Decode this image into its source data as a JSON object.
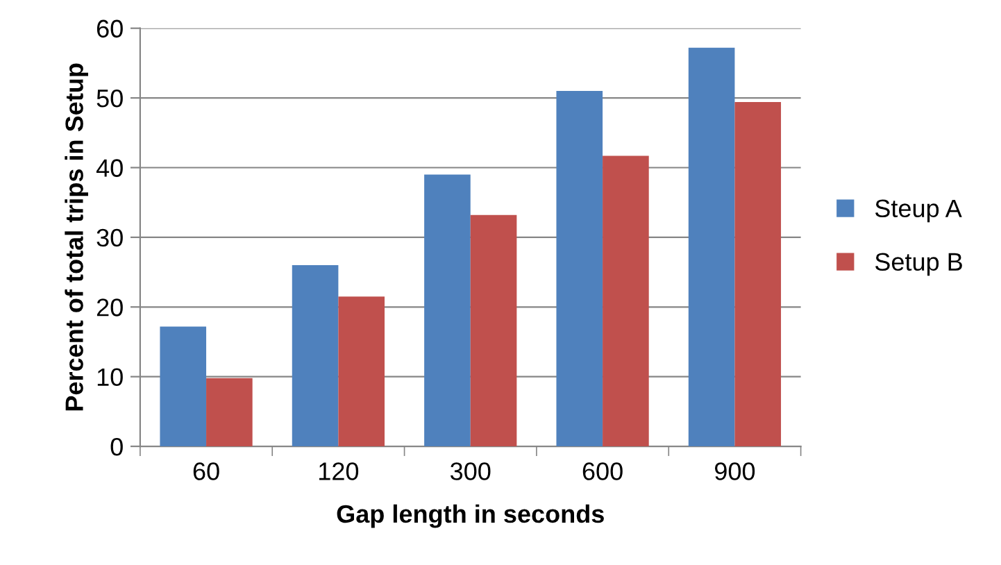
{
  "chart_data": {
    "type": "bar",
    "xlabel": "Gap length in seconds",
    "ylabel": "Percent of total trips in Setup",
    "categories": [
      "60",
      "120",
      "300",
      "600",
      "900"
    ],
    "series": [
      {
        "name": "Steup A",
        "color": "#4f81bd",
        "values": [
          17.2,
          26,
          39,
          51,
          57.2
        ]
      },
      {
        "name": "Setup B",
        "color": "#c0504d",
        "values": [
          9.8,
          21.5,
          33.2,
          41.7,
          49.4
        ]
      }
    ],
    "ylim": [
      0,
      60
    ],
    "yticks": [
      0,
      10,
      20,
      30,
      40,
      50,
      60
    ],
    "grid": "y",
    "legend": "right"
  }
}
